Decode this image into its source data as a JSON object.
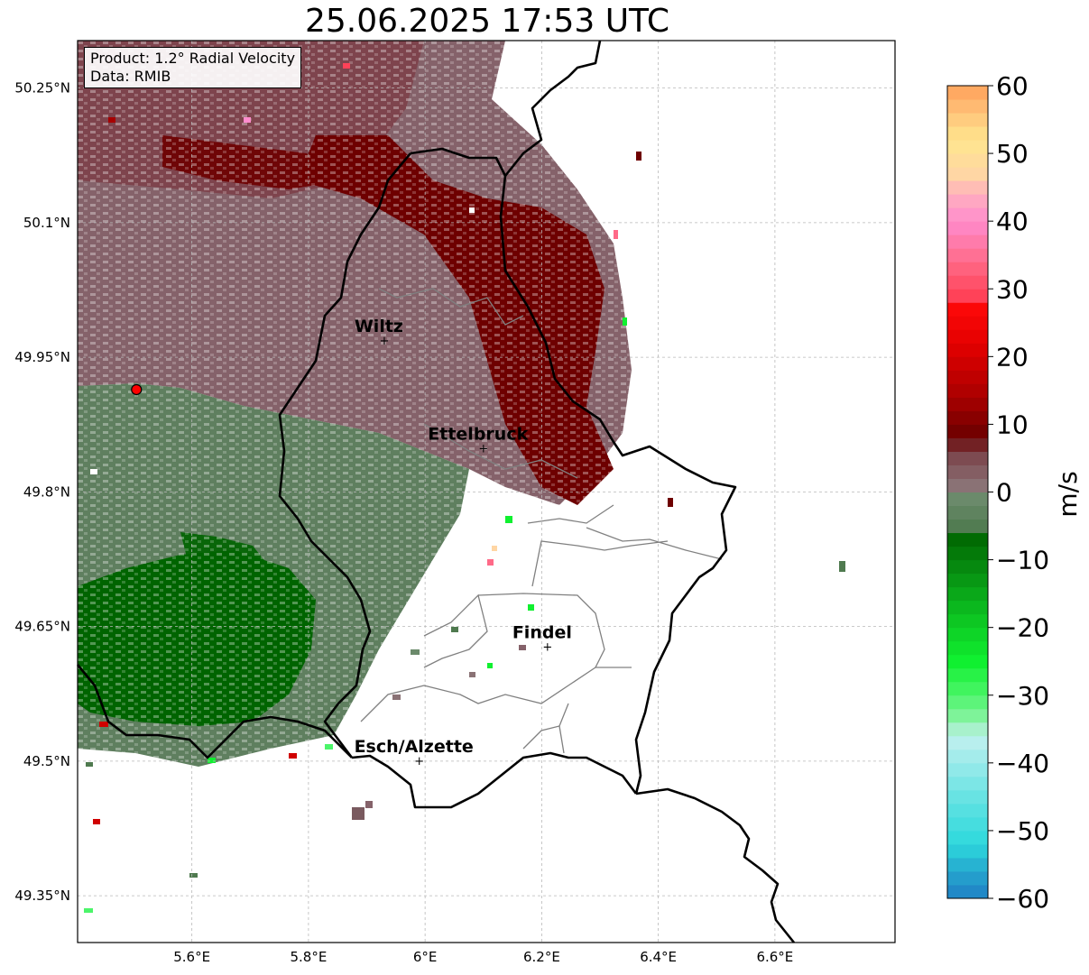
{
  "title": "25.06.2025 17:53 UTC",
  "product_box": {
    "product": "Product: 1.2° Radial Velocity",
    "data_source": "Data: RMIB"
  },
  "map": {
    "lon_ticks": [
      {
        "value": 5.6,
        "label": "5.6°E"
      },
      {
        "value": 5.8,
        "label": "5.8°E"
      },
      {
        "value": 6.0,
        "label": "6°E"
      },
      {
        "value": 6.2,
        "label": "6.2°E"
      },
      {
        "value": 6.4,
        "label": "6.4°E"
      },
      {
        "value": 6.6,
        "label": "6.6°E"
      }
    ],
    "lat_ticks": [
      {
        "value": 50.25,
        "label": "50.25°N"
      },
      {
        "value": 50.1,
        "label": "50.1°N"
      },
      {
        "value": 49.95,
        "label": "49.95°N"
      },
      {
        "value": 49.8,
        "label": "49.8°N"
      },
      {
        "value": 49.65,
        "label": "49.65°N"
      },
      {
        "value": 49.5,
        "label": "49.5°N"
      },
      {
        "value": 49.35,
        "label": "49.35°N"
      }
    ],
    "cities": [
      {
        "name": "Wiltz",
        "lon": 5.93,
        "lat": 49.968
      },
      {
        "name": "Ettelbruck",
        "lon": 6.1,
        "lat": 49.848
      },
      {
        "name": "Findel",
        "lon": 6.21,
        "lat": 49.627
      },
      {
        "name": "Esch/Alzette",
        "lon": 5.99,
        "lat": 49.5
      }
    ],
    "radar_site": {
      "lon": 5.505,
      "lat": 49.914,
      "color": "#ff0000"
    }
  },
  "colorbar": {
    "unit_label": "m/s",
    "ticks": [
      {
        "value": 60,
        "label": "60"
      },
      {
        "value": 50,
        "label": "50"
      },
      {
        "value": 40,
        "label": "40"
      },
      {
        "value": 30,
        "label": "30"
      },
      {
        "value": 20,
        "label": "20"
      },
      {
        "value": 10,
        "label": "10"
      },
      {
        "value": 0,
        "label": "0"
      },
      {
        "value": -10,
        "label": "−10"
      },
      {
        "value": -20,
        "label": "−20"
      },
      {
        "value": -30,
        "label": "−30"
      },
      {
        "value": -40,
        "label": "−40"
      },
      {
        "value": -50,
        "label": "−50"
      },
      {
        "value": -60,
        "label": "−60"
      }
    ],
    "range": [
      -60,
      60
    ],
    "stops": [
      {
        "v": -60,
        "color": "#1f7fc4"
      },
      {
        "v": -56,
        "color": "#25a7cf"
      },
      {
        "v": -52,
        "color": "#2dd8dc"
      },
      {
        "v": -46,
        "color": "#5ee2e2"
      },
      {
        "v": -40,
        "color": "#9aeaea"
      },
      {
        "v": -36,
        "color": "#c2f0ef"
      },
      {
        "v": -34,
        "color": "#8ef2a8"
      },
      {
        "v": -30,
        "color": "#4cf56a"
      },
      {
        "v": -25,
        "color": "#10f030"
      },
      {
        "v": -18,
        "color": "#0cc020"
      },
      {
        "v": -12,
        "color": "#079012"
      },
      {
        "v": -6,
        "color": "#006400"
      },
      {
        "v": -5.5,
        "color": "#4f7a4f"
      },
      {
        "v": -1,
        "color": "#6b8a6b"
      },
      {
        "v": 1,
        "color": "#8a7275"
      },
      {
        "v": 6,
        "color": "#7a4148"
      },
      {
        "v": 8,
        "color": "#6a0000"
      },
      {
        "v": 14,
        "color": "#a80000"
      },
      {
        "v": 22,
        "color": "#e40000"
      },
      {
        "v": 28,
        "color": "#ff0a0a"
      },
      {
        "v": 29,
        "color": "#ff4258"
      },
      {
        "v": 34,
        "color": "#ff6a88"
      },
      {
        "v": 40,
        "color": "#ff8ccd"
      },
      {
        "v": 44,
        "color": "#ffb0be"
      },
      {
        "v": 47,
        "color": "#ffd6a4"
      },
      {
        "v": 52,
        "color": "#ffe68e"
      },
      {
        "v": 56,
        "color": "#ffc37a"
      },
      {
        "v": 60,
        "color": "#ffa05a"
      }
    ]
  }
}
